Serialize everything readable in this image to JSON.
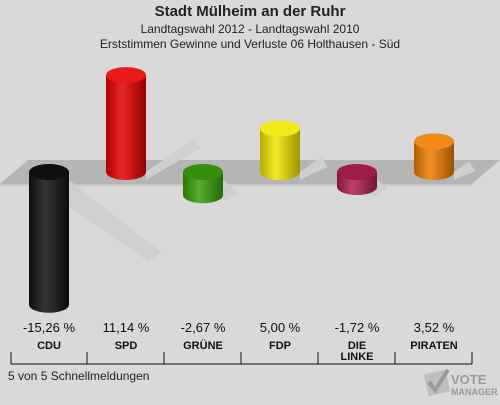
{
  "header": {
    "title": "Stadt Mülheim an der Ruhr",
    "subtitle1": "Landtagswahl 2012 - Landtagswahl 2010",
    "subtitle2": "Erststimmen Gewinne und Verluste 06 Holthausen - Süd"
  },
  "chart_data": {
    "type": "bar",
    "categories": [
      "CDU",
      "SPD",
      "GRÜNE",
      "FDP",
      "DIE LINKE",
      "PIRATEN"
    ],
    "values": [
      -15.26,
      11.14,
      -2.67,
      5.0,
      -1.72,
      3.52
    ],
    "value_labels": [
      "-15,26 %",
      "11,14 %",
      "-2,67 %",
      "5,00 %",
      "-1,72 %",
      "3,52 %"
    ],
    "colors": [
      "#111111",
      "#e60000",
      "#3aa00a",
      "#f2e600",
      "#b0204f",
      "#f07d00"
    ],
    "ylim": [
      -15.26,
      11.14
    ],
    "grid": false
  },
  "footer": {
    "text": "5 von 5 Schnellmeldungen"
  },
  "logo": {
    "text": "VOTE",
    "subtext": "MANAGER",
    "icon": "checkmark-ballot-icon"
  }
}
